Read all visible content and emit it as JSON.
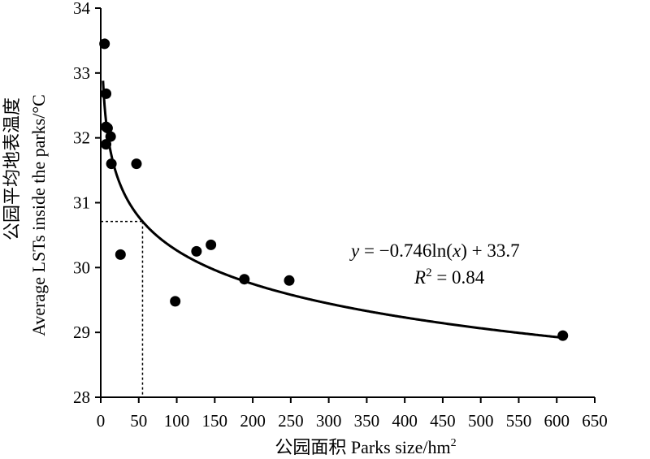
{
  "chart_data": {
    "type": "scatter",
    "title": "",
    "xlabel": "公园面积 Parks size/hm",
    "xlabel_sup": "2",
    "ylabel_zh": "公园平均地表温度",
    "ylabel_en": "Average LSTs inside the parks/°C",
    "xlim": [
      0,
      650
    ],
    "ylim": [
      28,
      34
    ],
    "x_ticks": [
      0,
      50,
      100,
      150,
      200,
      250,
      300,
      350,
      400,
      450,
      500,
      550,
      600,
      650
    ],
    "y_ticks": [
      28,
      29,
      30,
      31,
      32,
      33,
      34
    ],
    "grid": false,
    "legend": "none",
    "points": [
      {
        "x": 5,
        "y": 33.45
      },
      {
        "x": 7,
        "y": 32.68
      },
      {
        "x": 7,
        "y": 32.17
      },
      {
        "x": 9,
        "y": 32.15
      },
      {
        "x": 13,
        "y": 32.02
      },
      {
        "x": 7,
        "y": 31.9
      },
      {
        "x": 14,
        "y": 31.6
      },
      {
        "x": 26,
        "y": 30.2
      },
      {
        "x": 47,
        "y": 31.6
      },
      {
        "x": 98,
        "y": 29.48
      },
      {
        "x": 126,
        "y": 30.25
      },
      {
        "x": 145,
        "y": 30.35
      },
      {
        "x": 189,
        "y": 29.82
      },
      {
        "x": 248,
        "y": 29.8
      },
      {
        "x": 608,
        "y": 28.95
      }
    ],
    "fit": {
      "type": "logarithmic",
      "a": -0.746,
      "b": 33.7,
      "equation_lhs": "y",
      "equation_mid": " = −0.746ln(",
      "equation_var": "x",
      "equation_rhs": ") + 33.7",
      "r2_label": "R",
      "r2_sup": "2",
      "r2_value": " = 0.84"
    },
    "reference": {
      "x": 55,
      "y": 30.71
    }
  }
}
